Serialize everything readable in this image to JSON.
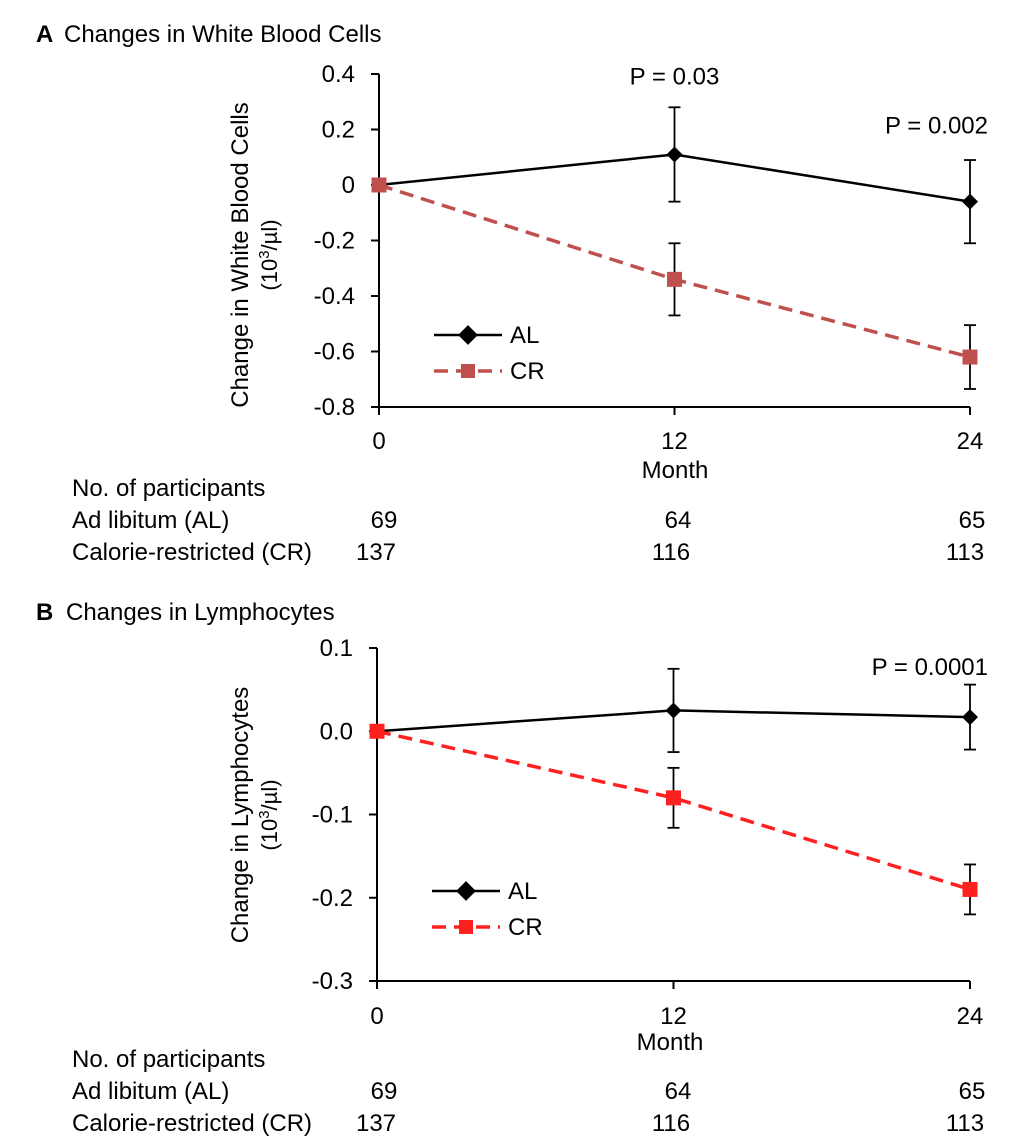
{
  "chart_data": [
    {
      "type": "line",
      "panel_letter": "A",
      "title": "Changes in White Blood Cells",
      "ylabel_line1": "Change in White Blood Cells",
      "ylabel_unit_pre": "(10",
      "ylabel_unit_sup": "3",
      "ylabel_unit_post": "/µl)",
      "xlabel": "Month",
      "x": [
        0,
        12,
        24
      ],
      "x_tick_labels": [
        "0",
        "12",
        "24"
      ],
      "xlim": [
        0,
        24
      ],
      "ylim": [
        -0.8,
        0.4
      ],
      "y_ticks": [
        0.4,
        0.2,
        0,
        -0.2,
        -0.4,
        -0.6,
        -0.8
      ],
      "y_tick_labels": [
        "0.4",
        "0.2",
        "0",
        "-0.2",
        "-0.4",
        "-0.6",
        "-0.8"
      ],
      "series": [
        {
          "name": "AL",
          "color": "#000000",
          "dash": false,
          "marker": "diamond",
          "values": [
            0,
            0.11,
            -0.06
          ],
          "errors": [
            0,
            0.17,
            0.15
          ]
        },
        {
          "name": "CR",
          "color": "#c0504d",
          "dash": true,
          "marker": "square",
          "values": [
            0,
            -0.34,
            -0.62
          ],
          "errors": [
            0,
            0.13,
            0.115
          ]
        }
      ],
      "annotations": [
        {
          "text": "P = 0.03",
          "x": 12,
          "y": 0.34
        },
        {
          "text": "P = 0.002",
          "x": 24,
          "y": 0.2
        }
      ],
      "legend": "middle-left",
      "participants": {
        "header": "No. of participants",
        "rows": [
          {
            "label": "Ad libitum (AL)",
            "values": [
              "69",
              "64",
              "65"
            ]
          },
          {
            "label": "Calorie-restricted (CR)",
            "values": [
              "137",
              "116",
              "113"
            ]
          }
        ]
      }
    },
    {
      "type": "line",
      "panel_letter": "B",
      "title": "Changes in Lymphocytes",
      "ylabel_line1": "Change in Lymphocytes",
      "ylabel_unit_pre": "(10",
      "ylabel_unit_sup": "3",
      "ylabel_unit_post": "/µl)",
      "xlabel": "Month",
      "x": [
        0,
        12,
        24
      ],
      "x_tick_labels": [
        "0",
        "12",
        "24"
      ],
      "xlim": [
        0,
        24
      ],
      "ylim": [
        -0.3,
        0.1
      ],
      "y_ticks": [
        0.1,
        0.0,
        -0.1,
        -0.2,
        -0.3
      ],
      "y_tick_labels": [
        "0.1",
        "0.0",
        "-0.1",
        "-0.2",
        "-0.3"
      ],
      "series": [
        {
          "name": "AL",
          "color": "#000000",
          "dash": false,
          "marker": "diamond",
          "values": [
            0,
            0.025,
            0.017
          ],
          "errors": [
            0,
            0.05,
            0.039
          ]
        },
        {
          "name": "CR",
          "color": "#ff2020",
          "dash": true,
          "marker": "square",
          "values": [
            0,
            -0.08,
            -0.19
          ],
          "errors": [
            0,
            0.036,
            0.03
          ]
        }
      ],
      "annotations": [
        {
          "text": "P = 0.0001",
          "x": 24,
          "y": 0.077
        }
      ],
      "legend": "middle-left",
      "participants": {
        "header": "No. of participants",
        "rows": [
          {
            "label": "Ad libitum (AL)",
            "values": [
              "69",
              "64",
              "65"
            ]
          },
          {
            "label": "Calorie-restricted (CR)",
            "values": [
              "137",
              "116",
              "113"
            ]
          }
        ]
      }
    }
  ]
}
